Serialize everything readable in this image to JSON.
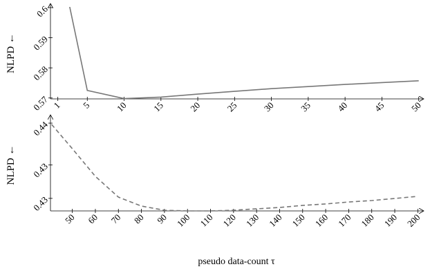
{
  "chart_data": [
    {
      "type": "line",
      "y_label": "NLPD ←",
      "x": [
        1,
        5,
        10,
        15,
        20,
        25,
        30,
        35,
        40,
        45,
        50
      ],
      "values": [
        0.619,
        0.5725,
        0.5698,
        0.5703,
        0.5713,
        0.5722,
        0.5731,
        0.5738,
        0.5745,
        0.5751,
        0.5757
      ],
      "color": "#777777",
      "dashed": false,
      "xlim": [
        0,
        50.5
      ],
      "ylim": [
        0.5697,
        0.6
      ],
      "xticks": [
        1,
        5,
        10,
        15,
        20,
        25,
        30,
        35,
        40,
        45,
        50
      ],
      "yticks": [
        0.57,
        0.58,
        0.59,
        0.6
      ]
    },
    {
      "type": "line",
      "y_label": "NLPD ←",
      "x_label": "pseudo data-count τ",
      "x": [
        41,
        50,
        60,
        70,
        80,
        90,
        100,
        110,
        120,
        130,
        140,
        150,
        160,
        170,
        180,
        190,
        200
      ],
      "values": [
        0.43984,
        0.43694,
        0.43363,
        0.43115,
        0.43008,
        0.42958,
        0.4295,
        0.4295,
        0.42958,
        0.42975,
        0.42991,
        0.43016,
        0.43033,
        0.43057,
        0.43074,
        0.43099,
        0.43124
      ],
      "color": "#777777",
      "dashed": true,
      "xlim": [
        40.5,
        202
      ],
      "ylim": [
        0.4295,
        0.4405
      ],
      "xticks": [
        50,
        60,
        70,
        80,
        90,
        100,
        110,
        120,
        130,
        140,
        150,
        160,
        170,
        180,
        190,
        200
      ],
      "yticks": [
        0.44,
        {
          "value": 0.435,
          "label": "0.43"
        },
        {
          "value": 0.431,
          "label": "0.43"
        }
      ]
    }
  ]
}
